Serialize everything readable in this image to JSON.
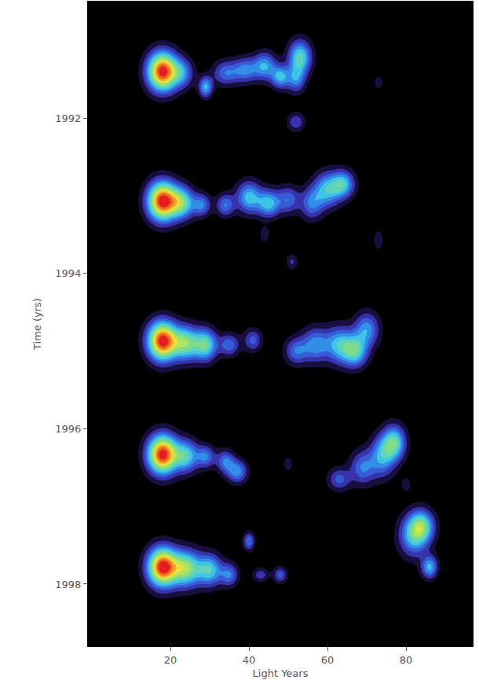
{
  "chart_data": {
    "type": "contour",
    "x_label": "Light Years",
    "y_label": "Time (yrs)",
    "xlim": [
      -1,
      97
    ],
    "xticks": [
      20,
      40,
      60,
      80
    ],
    "ylim": [
      1998.8,
      1990.5
    ],
    "yticks": [
      1992,
      1994,
      1996,
      1998
    ],
    "zlim": [
      0,
      1
    ],
    "components": [
      {
        "x": 18,
        "y": 1991.4,
        "flux": 1.0,
        "width": 2.6,
        "height": 0.17
      },
      {
        "x": 23,
        "y": 1991.42,
        "flux": 0.3,
        "width": 2.0,
        "height": 0.13
      },
      {
        "x": 29,
        "y": 1991.6,
        "flux": 0.4,
        "width": 1.2,
        "height": 0.09
      },
      {
        "x": 34,
        "y": 1991.42,
        "flux": 0.28,
        "width": 2.2,
        "height": 0.11
      },
      {
        "x": 39,
        "y": 1991.38,
        "flux": 0.32,
        "width": 2.2,
        "height": 0.11
      },
      {
        "x": 44,
        "y": 1991.33,
        "flux": 0.38,
        "width": 2.0,
        "height": 0.12
      },
      {
        "x": 48,
        "y": 1991.47,
        "flux": 0.4,
        "width": 1.6,
        "height": 0.1
      },
      {
        "x": 53,
        "y": 1991.22,
        "flux": 0.5,
        "width": 2.0,
        "height": 0.15
      },
      {
        "x": 52,
        "y": 1991.5,
        "flux": 0.3,
        "width": 1.6,
        "height": 0.12
      },
      {
        "x": 73,
        "y": 1991.54,
        "flux": 0.12,
        "width": 0.8,
        "height": 0.06
      },
      {
        "x": 52,
        "y": 1992.05,
        "flux": 0.22,
        "width": 1.5,
        "height": 0.08
      },
      {
        "x": 18,
        "y": 1993.07,
        "flux": 1.0,
        "width": 2.6,
        "height": 0.17
      },
      {
        "x": 23,
        "y": 1993.09,
        "flux": 0.5,
        "width": 2.2,
        "height": 0.14
      },
      {
        "x": 28,
        "y": 1993.12,
        "flux": 0.3,
        "width": 1.6,
        "height": 0.1
      },
      {
        "x": 34,
        "y": 1993.12,
        "flux": 0.3,
        "width": 1.6,
        "height": 0.1
      },
      {
        "x": 40,
        "y": 1993.02,
        "flux": 0.42,
        "width": 2.2,
        "height": 0.14
      },
      {
        "x": 45,
        "y": 1993.1,
        "flux": 0.42,
        "width": 2.0,
        "height": 0.12
      },
      {
        "x": 50,
        "y": 1993.05,
        "flux": 0.28,
        "width": 2.0,
        "height": 0.12
      },
      {
        "x": 56,
        "y": 1993.1,
        "flux": 0.3,
        "width": 2.0,
        "height": 0.14
      },
      {
        "x": 60,
        "y": 1992.92,
        "flux": 0.42,
        "width": 2.4,
        "height": 0.15
      },
      {
        "x": 64,
        "y": 1992.85,
        "flux": 0.42,
        "width": 2.0,
        "height": 0.12
      },
      {
        "x": 44,
        "y": 1993.5,
        "flux": 0.14,
        "width": 0.8,
        "height": 0.07
      },
      {
        "x": 51,
        "y": 1993.85,
        "flux": 0.16,
        "width": 1.0,
        "height": 0.07
      },
      {
        "x": 73,
        "y": 1993.57,
        "flux": 0.14,
        "width": 0.8,
        "height": 0.09
      },
      {
        "x": 18,
        "y": 1994.87,
        "flux": 1.0,
        "width": 2.6,
        "height": 0.17
      },
      {
        "x": 24,
        "y": 1994.9,
        "flux": 0.55,
        "width": 2.4,
        "height": 0.15
      },
      {
        "x": 29,
        "y": 1994.92,
        "flux": 0.5,
        "width": 2.0,
        "height": 0.14
      },
      {
        "x": 35,
        "y": 1994.92,
        "flux": 0.28,
        "width": 1.8,
        "height": 0.1
      },
      {
        "x": 41,
        "y": 1994.86,
        "flux": 0.25,
        "width": 1.6,
        "height": 0.1
      },
      {
        "x": 52,
        "y": 1995.0,
        "flux": 0.28,
        "width": 2.0,
        "height": 0.12
      },
      {
        "x": 57,
        "y": 1994.92,
        "flux": 0.35,
        "width": 2.4,
        "height": 0.15
      },
      {
        "x": 63,
        "y": 1994.92,
        "flux": 0.4,
        "width": 2.4,
        "height": 0.16
      },
      {
        "x": 67,
        "y": 1995.0,
        "flux": 0.48,
        "width": 2.2,
        "height": 0.14
      },
      {
        "x": 70,
        "y": 1994.72,
        "flux": 0.35,
        "width": 2.2,
        "height": 0.15
      },
      {
        "x": 18,
        "y": 1996.33,
        "flux": 1.0,
        "width": 2.6,
        "height": 0.17
      },
      {
        "x": 24,
        "y": 1996.35,
        "flux": 0.45,
        "width": 2.2,
        "height": 0.14
      },
      {
        "x": 29,
        "y": 1996.36,
        "flux": 0.3,
        "width": 1.6,
        "height": 0.1
      },
      {
        "x": 34,
        "y": 1996.42,
        "flux": 0.3,
        "width": 1.6,
        "height": 0.1
      },
      {
        "x": 37,
        "y": 1996.55,
        "flux": 0.35,
        "width": 1.8,
        "height": 0.1
      },
      {
        "x": 50,
        "y": 1996.45,
        "flux": 0.14,
        "width": 0.8,
        "height": 0.06
      },
      {
        "x": 63,
        "y": 1996.65,
        "flux": 0.25,
        "width": 2.0,
        "height": 0.1
      },
      {
        "x": 69,
        "y": 1996.5,
        "flux": 0.3,
        "width": 2.2,
        "height": 0.15
      },
      {
        "x": 74,
        "y": 1996.35,
        "flux": 0.38,
        "width": 2.2,
        "height": 0.18
      },
      {
        "x": 77,
        "y": 1996.18,
        "flux": 0.5,
        "width": 2.0,
        "height": 0.15
      },
      {
        "x": 80,
        "y": 1996.72,
        "flux": 0.14,
        "width": 0.8,
        "height": 0.06
      },
      {
        "x": 18,
        "y": 1997.78,
        "flux": 1.0,
        "width": 2.6,
        "height": 0.17
      },
      {
        "x": 24,
        "y": 1997.8,
        "flux": 0.6,
        "width": 2.6,
        "height": 0.16
      },
      {
        "x": 30,
        "y": 1997.82,
        "flux": 0.45,
        "width": 2.2,
        "height": 0.14
      },
      {
        "x": 35,
        "y": 1997.88,
        "flux": 0.3,
        "width": 1.6,
        "height": 0.1
      },
      {
        "x": 40,
        "y": 1997.45,
        "flux": 0.3,
        "width": 1.0,
        "height": 0.08
      },
      {
        "x": 43,
        "y": 1997.88,
        "flux": 0.2,
        "width": 1.4,
        "height": 0.06
      },
      {
        "x": 48,
        "y": 1997.88,
        "flux": 0.25,
        "width": 1.2,
        "height": 0.07
      },
      {
        "x": 82,
        "y": 1997.38,
        "flux": 0.4,
        "width": 2.6,
        "height": 0.18
      },
      {
        "x": 84,
        "y": 1997.25,
        "flux": 0.45,
        "width": 2.2,
        "height": 0.14
      },
      {
        "x": 86,
        "y": 1997.78,
        "flux": 0.4,
        "width": 1.4,
        "height": 0.1
      }
    ]
  }
}
